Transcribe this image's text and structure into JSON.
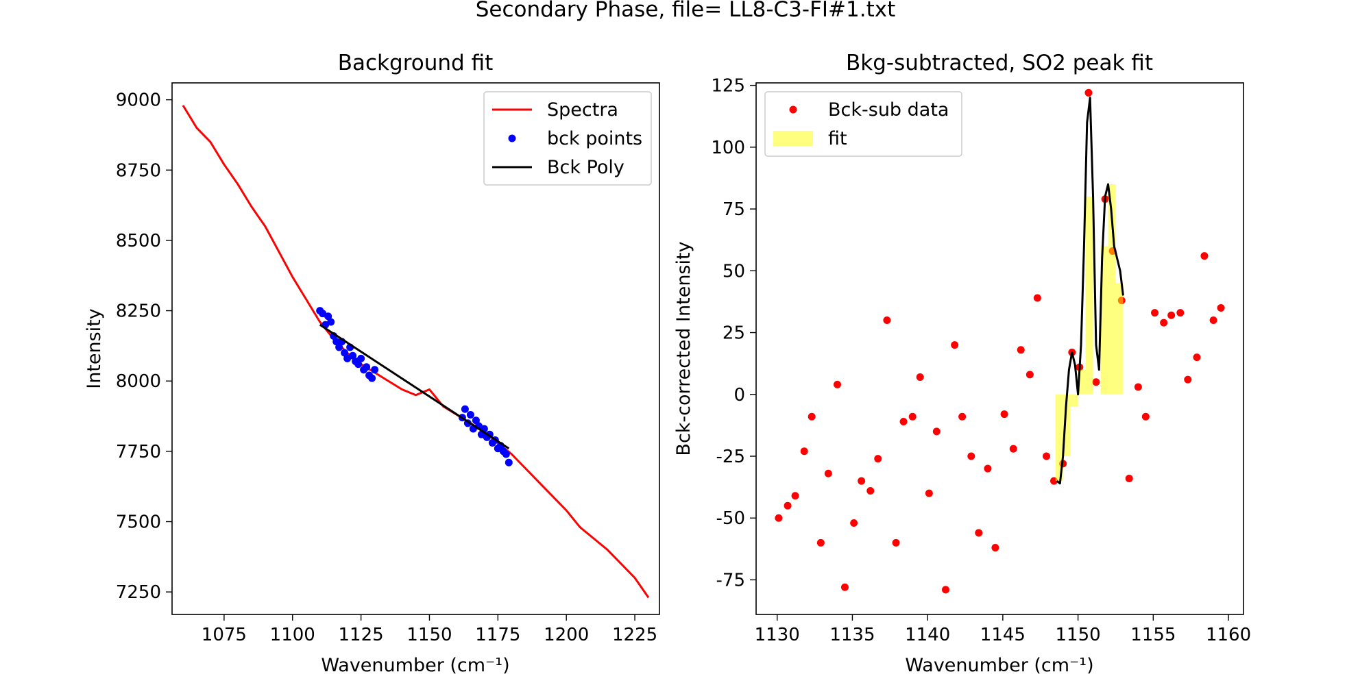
{
  "figure": {
    "suptitle": "Secondary Phase, file= LL8-C3-FI#1.txt"
  },
  "chart_data": [
    {
      "type": "line",
      "title": "Background fit",
      "xlabel": "Wavenumber (cm⁻¹)",
      "ylabel": "Intensity",
      "xlim": [
        1056,
        1234
      ],
      "ylim": [
        7170,
        9060
      ],
      "xticks": [
        1075,
        1100,
        1125,
        1150,
        1175,
        1200,
        1225
      ],
      "yticks": [
        7250,
        7500,
        7750,
        8000,
        8250,
        8500,
        8750,
        9000
      ],
      "grid": false,
      "legend_position": "top-right",
      "series": [
        {
          "name": "Spectra",
          "kind": "line",
          "color": "#ff0000",
          "x": [
            1060,
            1065,
            1070,
            1075,
            1080,
            1085,
            1090,
            1095,
            1100,
            1105,
            1110,
            1115,
            1120,
            1125,
            1130,
            1135,
            1140,
            1145,
            1150,
            1155,
            1160,
            1165,
            1170,
            1175,
            1180,
            1185,
            1190,
            1195,
            1200,
            1205,
            1210,
            1215,
            1220,
            1225,
            1230
          ],
          "y": [
            8980,
            8900,
            8850,
            8770,
            8700,
            8620,
            8550,
            8460,
            8370,
            8290,
            8210,
            8150,
            8100,
            8060,
            8030,
            8000,
            7970,
            7950,
            7970,
            7910,
            7880,
            7850,
            7820,
            7780,
            7740,
            7690,
            7640,
            7590,
            7540,
            7480,
            7440,
            7400,
            7350,
            7300,
            7230
          ]
        },
        {
          "name": "bck points",
          "kind": "scatter",
          "color": "#0000ff",
          "x": [
            1110,
            1111,
            1112,
            1113,
            1114,
            1115,
            1116,
            1117,
            1118,
            1119,
            1120,
            1121,
            1122,
            1123,
            1124,
            1125,
            1126,
            1127,
            1128,
            1129,
            1130,
            1162,
            1163,
            1164,
            1165,
            1166,
            1167,
            1168,
            1169,
            1170,
            1171,
            1172,
            1173,
            1174,
            1175,
            1176,
            1177,
            1178,
            1179
          ],
          "y": [
            8250,
            8240,
            8200,
            8230,
            8210,
            8160,
            8140,
            8120,
            8140,
            8100,
            8080,
            8120,
            8090,
            8070,
            8060,
            8080,
            8040,
            8050,
            8020,
            8010,
            8040,
            7870,
            7900,
            7850,
            7880,
            7830,
            7860,
            7840,
            7810,
            7830,
            7800,
            7810,
            7780,
            7790,
            7760,
            7770,
            7750,
            7740,
            7710
          ]
        },
        {
          "name": "Bck Poly",
          "kind": "line",
          "color": "#000000",
          "x": [
            1110,
            1179
          ],
          "y": [
            8200,
            7760
          ]
        }
      ]
    },
    {
      "type": "scatter",
      "title": "Bkg-subtracted, SO2 peak fit",
      "xlabel": "Wavenumber (cm⁻¹)",
      "ylabel": "Bck-corrected Intensity",
      "xlim": [
        1128.6,
        1161.0
      ],
      "ylim": [
        -89,
        126
      ],
      "xticks": [
        1130,
        1135,
        1140,
        1145,
        1150,
        1155,
        1160
      ],
      "yticks": [
        -75,
        -50,
        -25,
        0,
        25,
        50,
        75,
        100,
        125
      ],
      "grid": false,
      "legend_position": "top-left",
      "series": [
        {
          "name": "Bck-sub data",
          "kind": "scatter",
          "color": "#ff0000",
          "x": [
            1130.1,
            1130.7,
            1131.2,
            1131.8,
            1132.3,
            1132.9,
            1133.4,
            1134.0,
            1134.5,
            1135.1,
            1135.6,
            1136.2,
            1136.7,
            1137.3,
            1137.9,
            1138.4,
            1139.0,
            1139.5,
            1140.1,
            1140.6,
            1141.2,
            1141.8,
            1142.3,
            1142.9,
            1143.4,
            1144.0,
            1144.5,
            1145.1,
            1145.7,
            1146.2,
            1146.8,
            1147.3,
            1147.9,
            1148.4,
            1149.0,
            1149.6,
            1150.1,
            1150.7,
            1151.2,
            1151.8,
            1152.3,
            1152.9,
            1153.4,
            1154.0,
            1154.5,
            1155.1,
            1155.7,
            1156.2,
            1156.8,
            1157.3,
            1157.9,
            1158.4,
            1159.0,
            1159.5
          ],
          "y": [
            -50,
            -45,
            -41,
            -23,
            -9,
            -60,
            -32,
            4,
            -78,
            -52,
            -35,
            -39,
            -26,
            30,
            -60,
            -11,
            -9,
            7,
            -40,
            -15,
            -79,
            20,
            -9,
            -25,
            -56,
            -30,
            -62,
            -8,
            -22,
            18,
            8,
            39,
            -25,
            -35,
            -28,
            17,
            11,
            122,
            5,
            79,
            58,
            38,
            -34,
            3,
            -9,
            33,
            29,
            32,
            33,
            6,
            15,
            56,
            30,
            35
          ]
        },
        {
          "name": "fit",
          "kind": "area",
          "color": "#ffff00",
          "x": [
            1148.5,
            1149.0,
            1149.0,
            1149.5,
            1149.5,
            1150.0,
            1150.0,
            1150.5,
            1150.5,
            1151.0,
            1151.0,
            1151.5,
            1151.5,
            1152.0,
            1152.0,
            1152.5,
            1152.5,
            1153.0
          ],
          "y": [
            -35,
            -35,
            -25,
            -25,
            -5,
            -5,
            10,
            10,
            80,
            80,
            0,
            0,
            60,
            60,
            85,
            85,
            45,
            45
          ]
        },
        {
          "name": "",
          "kind": "line",
          "color": "#000000",
          "x": [
            1148.6,
            1148.8,
            1149.0,
            1149.2,
            1149.4,
            1149.6,
            1149.8,
            1150.0,
            1150.2,
            1150.4,
            1150.6,
            1150.8,
            1151.0,
            1151.2,
            1151.4,
            1151.6,
            1151.8,
            1152.0,
            1152.2,
            1152.4,
            1152.6,
            1152.8,
            1153.0
          ],
          "y": [
            -35,
            -36,
            -25,
            -5,
            10,
            17,
            12,
            0,
            20,
            60,
            110,
            120,
            80,
            20,
            10,
            55,
            80,
            85,
            75,
            60,
            55,
            50,
            40
          ]
        }
      ]
    }
  ]
}
